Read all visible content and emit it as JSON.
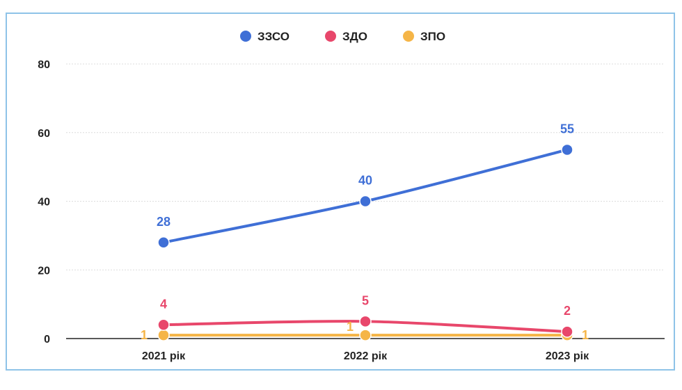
{
  "chart_data": {
    "type": "line",
    "categories": [
      "2021 рік",
      "2022 рік",
      "2023 рік"
    ],
    "series": [
      {
        "name": "ЗЗСО",
        "values": [
          28,
          40,
          55
        ],
        "color": "#3f6fd6"
      },
      {
        "name": "ЗДО",
        "values": [
          4,
          5,
          2
        ],
        "color": "#e8476b"
      },
      {
        "name": "ЗПО",
        "values": [
          1,
          1,
          1
        ],
        "color": "#f5b547"
      }
    ],
    "ylim": [
      0,
      80
    ],
    "yticks": [
      "0",
      "20",
      "40",
      "60",
      "80"
    ],
    "grid": true,
    "legend_position": "top-center"
  }
}
